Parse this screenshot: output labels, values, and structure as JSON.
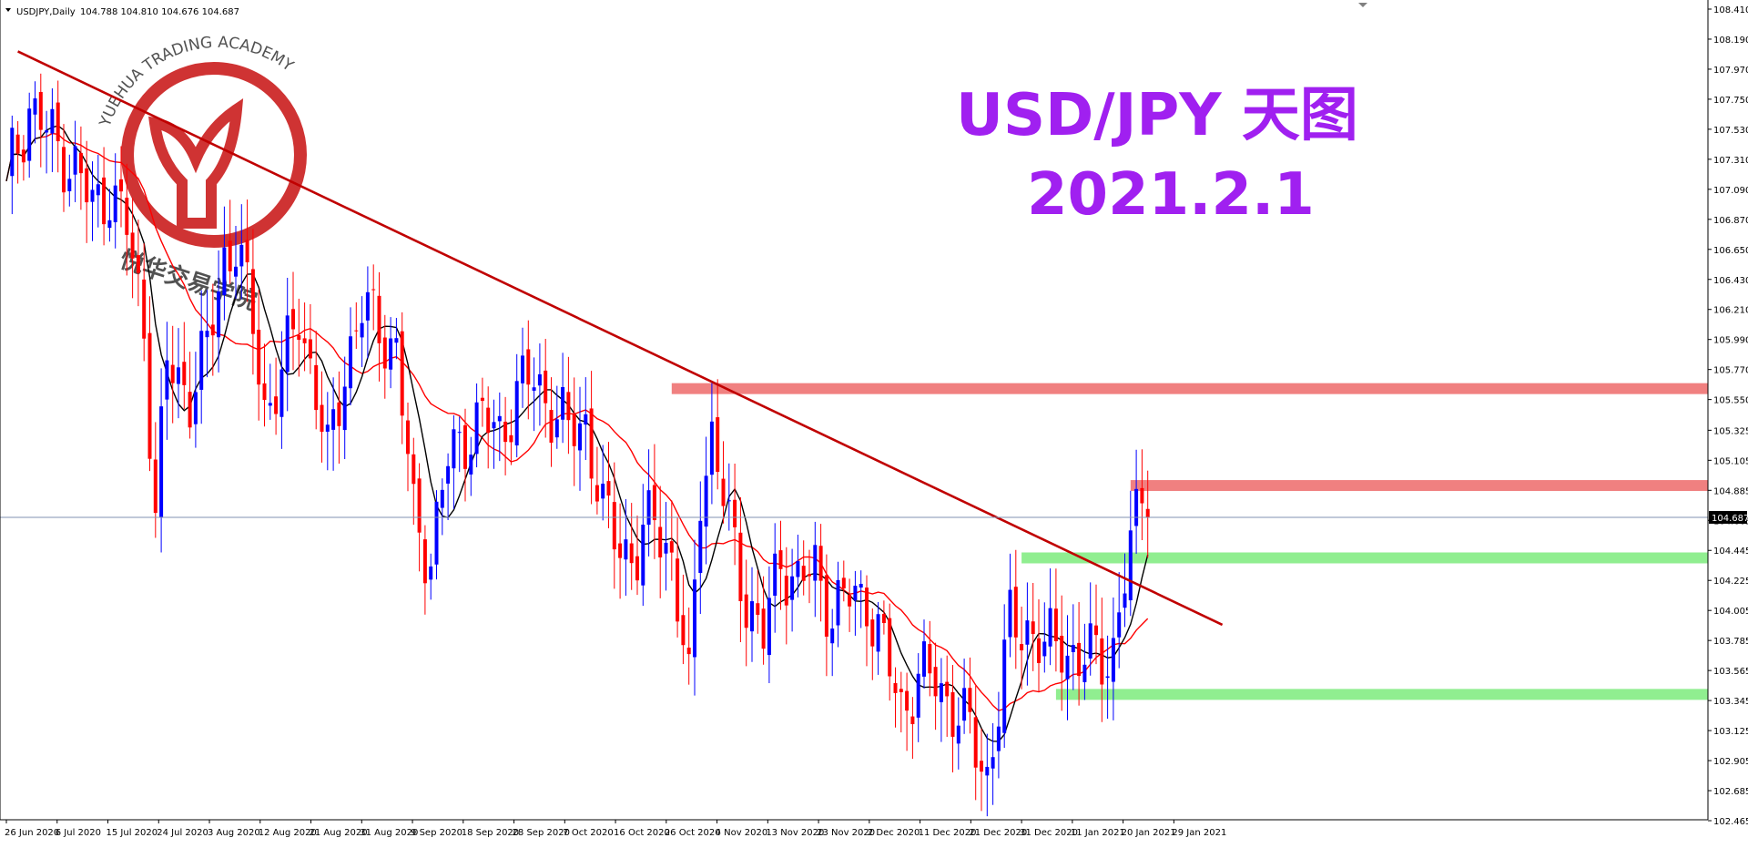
{
  "chart_data": {
    "type": "candlestick",
    "symbol_header": "USDJPY,Daily",
    "ohlc_header": "104.788 104.810 104.676 104.687",
    "title_line1": "USD/JPY 天图",
    "title_line2": "2021.2.1",
    "watermark_en": "YUEHUA TRADING ACADEMY",
    "watermark_cn": "悦华交易学院",
    "ylim": [
      102.465,
      108.41
    ],
    "current_price": "104.687",
    "y_ticks": [
      "108.410",
      "108.190",
      "107.970",
      "107.750",
      "107.530",
      "107.310",
      "107.090",
      "106.870",
      "106.650",
      "106.430",
      "106.210",
      "105.990",
      "105.770",
      "105.550",
      "105.325",
      "105.105",
      "104.885",
      "104.665",
      "104.445",
      "104.225",
      "104.005",
      "103.785",
      "103.565",
      "103.345",
      "103.125",
      "102.905",
      "102.685",
      "102.465"
    ],
    "x_ticks": [
      "26 Jun 2020",
      "6 Jul 2020",
      "15 Jul 2020",
      "24 Jul 2020",
      "3 Aug 2020",
      "12 Aug 2020",
      "21 Aug 2020",
      "31 Aug 2020",
      "9 Sep 2020",
      "18 Sep 2020",
      "28 Sep 2020",
      "7 Oct 2020",
      "16 Oct 2020",
      "26 Oct 2020",
      "4 Nov 2020",
      "13 Nov 2020",
      "23 Nov 2020",
      "2 Dec 2020",
      "11 Dec 2020",
      "21 Dec 2020",
      "31 Dec 2020",
      "11 Jan 2021",
      "20 Jan 2021",
      "29 Jan 2021"
    ],
    "close_keypoints": [
      [
        0,
        107.15
      ],
      [
        4,
        107.7
      ],
      [
        8,
        107.45
      ],
      [
        12,
        107.25
      ],
      [
        15,
        106.95
      ],
      [
        18,
        107.1
      ],
      [
        21,
        106.8
      ],
      [
        24,
        106.1
      ],
      [
        26,
        104.7
      ],
      [
        28,
        105.8
      ],
      [
        30,
        105.7
      ],
      [
        32,
        105.6
      ],
      [
        35,
        105.9
      ],
      [
        38,
        106.6
      ],
      [
        40,
        106.7
      ],
      [
        43,
        106.1
      ],
      [
        45,
        105.5
      ],
      [
        48,
        105.7
      ],
      [
        51,
        106.2
      ],
      [
        54,
        105.6
      ],
      [
        56,
        105.1
      ],
      [
        59,
        105.8
      ],
      [
        62,
        106.2
      ],
      [
        65,
        106.1
      ],
      [
        68,
        105.9
      ],
      [
        71,
        104.7
      ],
      [
        74,
        104.4
      ],
      [
        77,
        105.1
      ],
      [
        80,
        105.3
      ],
      [
        83,
        105.4
      ],
      [
        86,
        105.3
      ],
      [
        89,
        105.6
      ],
      [
        92,
        105.7
      ],
      [
        95,
        105.5
      ],
      [
        98,
        105.3
      ],
      [
        101,
        105.4
      ],
      [
        104,
        104.7
      ],
      [
        107,
        104.5
      ],
      [
        110,
        104.4
      ],
      [
        113,
        104.7
      ],
      [
        116,
        104.4
      ],
      [
        119,
        103.4
      ],
      [
        121,
        104.9
      ],
      [
        123,
        105.3
      ],
      [
        126,
        104.6
      ],
      [
        129,
        104.1
      ],
      [
        132,
        103.8
      ],
      [
        135,
        104.4
      ],
      [
        138,
        104.2
      ],
      [
        141,
        104.3
      ],
      [
        144,
        104.0
      ],
      [
        147,
        104.1
      ],
      [
        150,
        104.1
      ],
      [
        153,
        103.7
      ],
      [
        156,
        103.3
      ],
      [
        159,
        103.5
      ],
      [
        162,
        103.5
      ],
      [
        165,
        103.3
      ],
      [
        168,
        103.1
      ],
      [
        171,
        102.8
      ],
      [
        173,
        103.3
      ],
      [
        175,
        103.9
      ],
      [
        178,
        103.9
      ],
      [
        181,
        103.7
      ],
      [
        184,
        103.8
      ],
      [
        187,
        103.6
      ],
      [
        190,
        103.7
      ],
      [
        193,
        103.7
      ],
      [
        195,
        104.2
      ],
      [
        197,
        104.7
      ],
      [
        198,
        104.69
      ]
    ],
    "trendline": {
      "from": [
        2,
        108.1
      ],
      "to": [
        212,
        103.9
      ]
    },
    "resistance_zones": [
      {
        "x_start": 116,
        "y_low": 105.59,
        "y_high": 105.67
      },
      {
        "x_start": 196,
        "y_low": 104.88,
        "y_high": 104.96
      }
    ],
    "support_zones": [
      {
        "x_start": 177,
        "y_low": 104.35,
        "y_high": 104.43
      },
      {
        "x_start": 183,
        "y_low": 103.35,
        "y_high": 103.43
      }
    ],
    "colors": {
      "bull": "#0000ff",
      "bear": "#ff0000",
      "ma_fast": "#000000",
      "ma_slow": "#ff0000",
      "trendline": "#c00000",
      "resistance": "#f08080",
      "support": "#90ee90",
      "title": "#a020f0",
      "logo": "#cc2222"
    }
  }
}
